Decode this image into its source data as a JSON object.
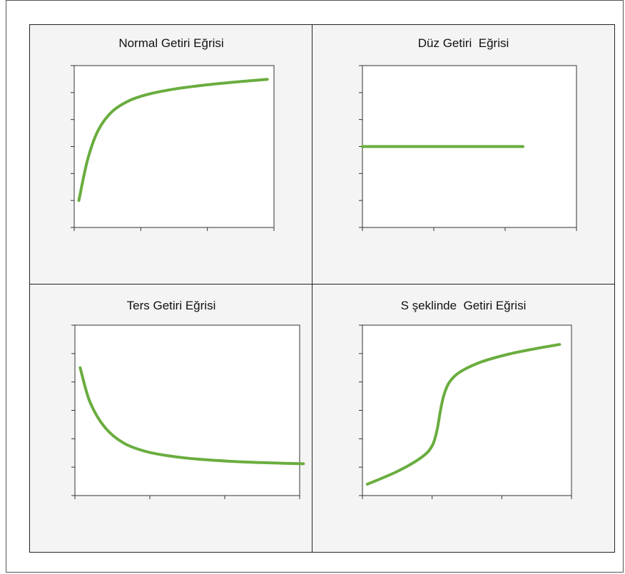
{
  "colors": {
    "curve": "#6aad3f",
    "axis": "#333333",
    "panel_bg": "#f4f4f4",
    "frame": "#555555"
  },
  "chart_data": [
    {
      "type": "line",
      "title": "Normal Getiri Eğrisi",
      "xlim": [
        0,
        3
      ],
      "ylim": [
        0,
        6
      ],
      "x_ticks": 3,
      "y_ticks": 6,
      "grid": false,
      "series": [
        {
          "x": [
            0.07,
            0.2,
            0.35,
            0.55,
            0.8,
            1.1,
            1.5,
            2.0,
            2.5,
            2.9
          ],
          "y": [
            1.0,
            2.5,
            3.55,
            4.25,
            4.67,
            4.93,
            5.13,
            5.29,
            5.41,
            5.49
          ]
        }
      ]
    },
    {
      "type": "line",
      "title": "Düz Getiri  Eğrisi",
      "xlim": [
        0,
        3
      ],
      "ylim": [
        0,
        6
      ],
      "x_ticks": 3,
      "y_ticks": 6,
      "grid": false,
      "series": [
        {
          "x": [
            0.0,
            2.25
          ],
          "y": [
            3.0,
            3.0
          ]
        }
      ]
    },
    {
      "type": "line",
      "title": "Ters Getiri Eğrisi",
      "xlim": [
        0,
        3
      ],
      "ylim": [
        0,
        6
      ],
      "x_ticks": 3,
      "y_ticks": 6,
      "grid": false,
      "series": [
        {
          "x": [
            0.07,
            0.2,
            0.4,
            0.65,
            0.95,
            1.3,
            1.7,
            2.2,
            2.75,
            3.05
          ],
          "y": [
            4.5,
            3.3,
            2.4,
            1.85,
            1.55,
            1.38,
            1.27,
            1.19,
            1.14,
            1.12
          ]
        }
      ]
    },
    {
      "type": "line",
      "title": "S şeklinde  Getiri Eğrisi",
      "xlim": [
        0,
        3
      ],
      "ylim": [
        0,
        6
      ],
      "x_ticks": 3,
      "y_ticks": 6,
      "grid": false,
      "series": [
        {
          "x": [
            0.07,
            0.5,
            0.85,
            1.0,
            1.07,
            1.12,
            1.17,
            1.25,
            1.4,
            1.7,
            2.1,
            2.5,
            2.83
          ],
          "y": [
            0.4,
            0.85,
            1.35,
            1.75,
            2.3,
            3.0,
            3.55,
            4.0,
            4.35,
            4.7,
            4.98,
            5.18,
            5.32
          ]
        }
      ]
    }
  ]
}
